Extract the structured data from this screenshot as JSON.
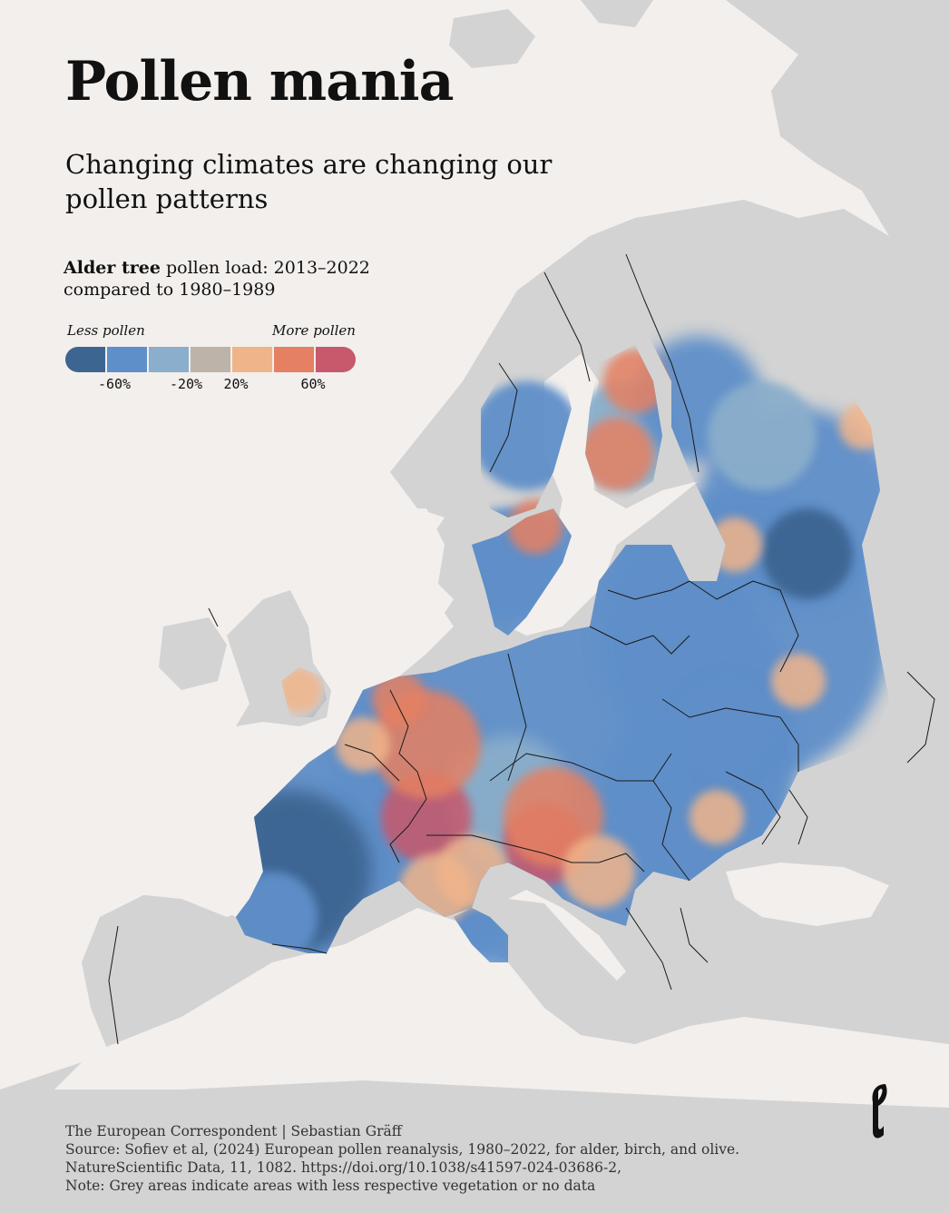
{
  "header": {
    "title": "Pollen mania",
    "subtitle": "Changing climates are changing our pollen patterns"
  },
  "legend": {
    "heading_bold": "Alder tree",
    "heading_rest": " pollen load: 2013–2022",
    "heading_line2": "compared to 1980–1989",
    "less_label": "Less pollen",
    "more_label": "More pollen",
    "swatches": [
      "#3d6592",
      "#5f8fc9",
      "#8aaecb",
      "#bdb3a8",
      "#f0b48a",
      "#e58062",
      "#c8586b"
    ],
    "ticks": [
      "-60%",
      "-20%",
      "20%",
      "60%"
    ]
  },
  "map": {
    "land_color": "#d3d3d3",
    "sea_color": "#f2efed",
    "border_color": "#1a1a1a"
  },
  "footer": {
    "credit": "The European Correspondent | Sebastian Gräff",
    "source": "Source: Sofiev et al, (2024) European pollen reanalysis, 1980–2022, for alder, birch, and olive. NatureScientific Data, 11, 1082. https://doi.org/10.1038/s41597-024-03686-2,",
    "note": "Note: Grey areas indicate areas with less respective vegetation or no data"
  }
}
